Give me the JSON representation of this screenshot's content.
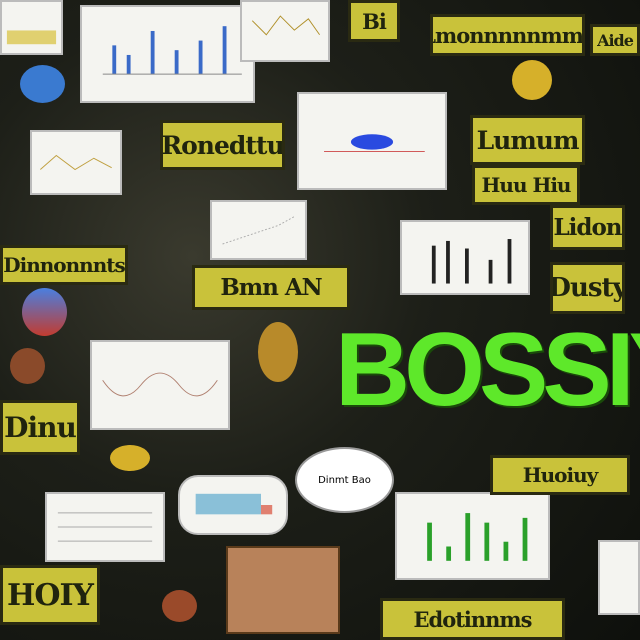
{
  "headline": "BOSSIY",
  "signs": [
    "Lmonnnnnmms",
    "Aide",
    "Ronedttu",
    "Lumum",
    "Huu Hiu",
    "Dinnonnnts",
    "Bmn AN",
    "Lidon",
    "Dusty",
    "Dinu",
    "Huoiuy",
    "HOIY",
    "Edotinnms",
    "Bi"
  ],
  "bubble": "Dinmt Bao"
}
